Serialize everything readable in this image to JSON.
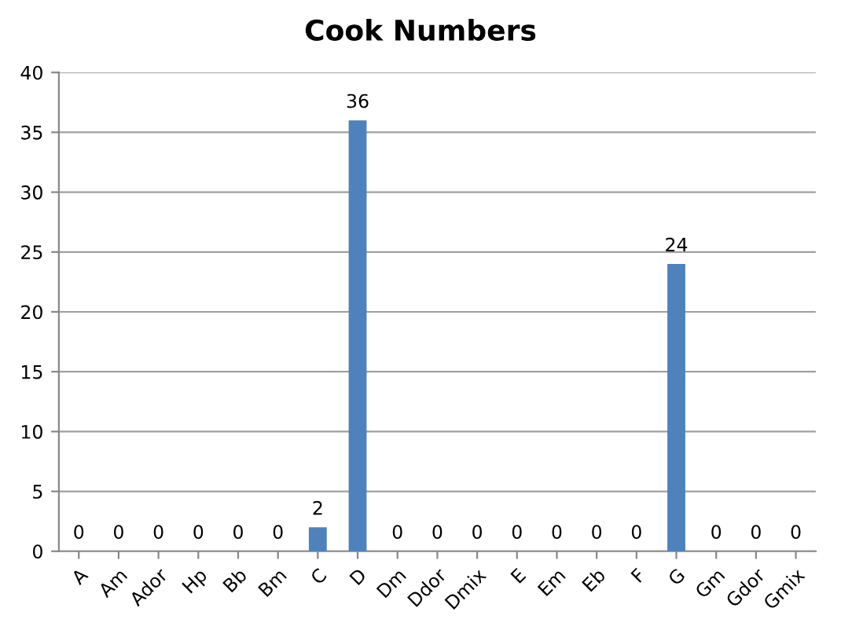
{
  "chart_data": {
    "type": "bar",
    "title": "Cook Numbers",
    "categories": [
      "A",
      "Am",
      "Ador",
      "Hp",
      "Bb",
      "Bm",
      "C",
      "D",
      "Dm",
      "Ddor",
      "Dmix",
      "E",
      "Em",
      "Eb",
      "F",
      "G",
      "Gm",
      "Gdor",
      "Gmix"
    ],
    "values": [
      0,
      0,
      0,
      0,
      0,
      0,
      2,
      36,
      0,
      0,
      0,
      0,
      0,
      0,
      0,
      24,
      0,
      0,
      0
    ],
    "color": "#4f81bd",
    "ylim": [
      0,
      40
    ],
    "yticks": [
      0,
      5,
      10,
      15,
      20,
      25,
      30,
      35,
      40
    ],
    "grid": "y",
    "data_labels": true,
    "legend": false
  }
}
